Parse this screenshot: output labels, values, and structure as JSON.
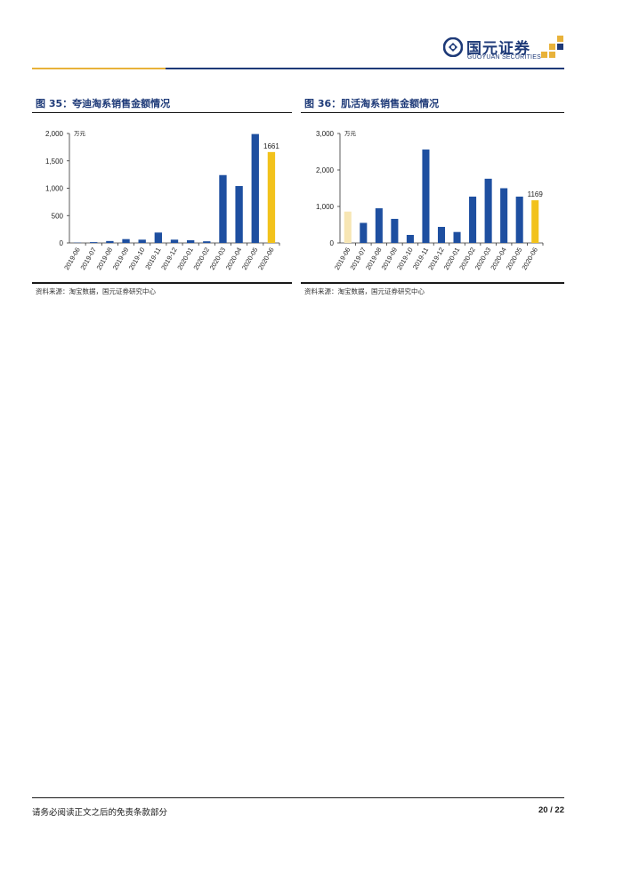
{
  "header": {
    "logo_cn": "国元证券",
    "logo_en": "GUOYUAN SECURITIES",
    "colors": {
      "brand_blue": "#1e3a78",
      "brand_gold": "#e8b23a"
    }
  },
  "figures": [
    {
      "title": "图 35：夸迪淘系销售金额情况",
      "source": "资料来源：淘宝数据，国元证券研究中心"
    },
    {
      "title": "图 36：肌活淘系销售金额情况",
      "source": "资料来源：淘宝数据，国元证券研究中心"
    }
  ],
  "chart_data": [
    {
      "type": "bar",
      "unit_label": "万元",
      "categories": [
        "2019-06",
        "2019-07",
        "2019-08",
        "2019-09",
        "2019-10",
        "2019-11",
        "2019-12",
        "2020-01",
        "2020-02",
        "2020-03",
        "2020-04",
        "2020-05",
        "2020-06"
      ],
      "values": [
        5,
        15,
        35,
        70,
        60,
        190,
        60,
        50,
        30,
        1240,
        1040,
        1990,
        1661
      ],
      "bar_colors": [
        "#1e4fa0",
        "#1e4fa0",
        "#1e4fa0",
        "#1e4fa0",
        "#1e4fa0",
        "#1e4fa0",
        "#1e4fa0",
        "#1e4fa0",
        "#1e4fa0",
        "#1e4fa0",
        "#1e4fa0",
        "#1e4fa0",
        "#f2c21b"
      ],
      "yticks": [
        0,
        500,
        1000,
        1500,
        2000
      ],
      "ytick_labels": [
        "0",
        "500",
        "1,000",
        "1,500",
        "2,000"
      ],
      "ylim": [
        0,
        2000
      ],
      "data_labels": [
        {
          "index": 12,
          "text": "1661"
        }
      ],
      "grid": false
    },
    {
      "type": "bar",
      "unit_label": "万元",
      "categories": [
        "2019-06",
        "2019-07",
        "2019-08",
        "2019-09",
        "2019-10",
        "2019-11",
        "2019-12",
        "2020-01",
        "2020-02",
        "2020-03",
        "2020-04",
        "2020-05",
        "2020-06"
      ],
      "values": [
        860,
        550,
        950,
        660,
        220,
        2560,
        440,
        300,
        1270,
        1760,
        1500,
        1270,
        1169
      ],
      "bar_colors": [
        "#f7e6b4",
        "#1e4fa0",
        "#1e4fa0",
        "#1e4fa0",
        "#1e4fa0",
        "#1e4fa0",
        "#1e4fa0",
        "#1e4fa0",
        "#1e4fa0",
        "#1e4fa0",
        "#1e4fa0",
        "#1e4fa0",
        "#f2c21b"
      ],
      "yticks": [
        0,
        1000,
        2000,
        3000
      ],
      "ytick_labels": [
        "0",
        "1,000",
        "2,000",
        "3,000"
      ],
      "ylim": [
        0,
        3000
      ],
      "data_labels": [
        {
          "index": 12,
          "text": "1169"
        }
      ],
      "grid": false
    }
  ],
  "footer": {
    "disclaimer": "请务必阅读正文之后的免责条款部分",
    "page": "20 / 22"
  }
}
